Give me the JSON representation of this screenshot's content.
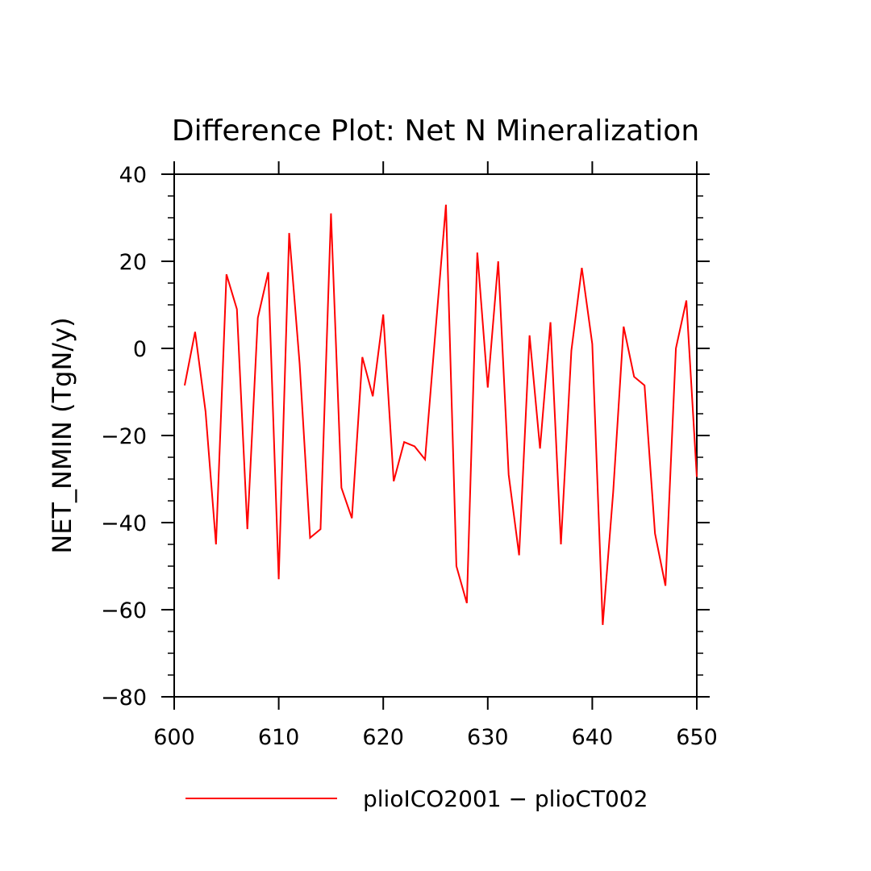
{
  "chart_data": {
    "type": "line",
    "title": "Difference Plot: Net N Mineralization",
    "ylabel": "NET_NMIN   (TgN/y)",
    "xlabel": "",
    "xlim": [
      600,
      650
    ],
    "ylim": [
      -80,
      40
    ],
    "x_ticks": [
      600,
      610,
      620,
      630,
      640,
      650
    ],
    "y_ticks": [
      -80,
      -60,
      -40,
      -20,
      0,
      20,
      40
    ],
    "x_tick_labels": [
      "600",
      "610",
      "620",
      "630",
      "640",
      "650"
    ],
    "y_tick_labels": [
      "−80",
      "−60",
      "−40",
      "−20",
      "0",
      "20",
      "40"
    ],
    "grid": false,
    "legend_position": "bottom",
    "series": [
      {
        "name": "plioICO2001 − plioCT002",
        "color": "#ff0000",
        "x": [
          601,
          602,
          603,
          604,
          605,
          606,
          607,
          608,
          609,
          610,
          611,
          612,
          613,
          614,
          615,
          616,
          617,
          618,
          619,
          620,
          621,
          622,
          623,
          624,
          625,
          626,
          627,
          628,
          629,
          630,
          631,
          632,
          633,
          634,
          635,
          636,
          637,
          638,
          639,
          640,
          641,
          642,
          643,
          644,
          645,
          646,
          647,
          648,
          649,
          650
        ],
        "values": [
          -8.5,
          3.8,
          -14.5,
          -45,
          17,
          9,
          -41.5,
          7,
          17.5,
          -53,
          26.5,
          -3.5,
          -43.5,
          -41.5,
          31,
          -32,
          -39,
          -2,
          -11,
          7.8,
          -30.5,
          -21.5,
          -22.5,
          -25.5,
          4,
          33,
          -50,
          -58.5,
          22,
          -9,
          20,
          -29,
          -47.5,
          3,
          -23,
          6,
          -45,
          -0.5,
          18.5,
          1,
          -63.5,
          -33,
          5,
          -6.5,
          -8.5,
          -42.5,
          -54.5,
          0,
          11,
          -29.5
        ]
      }
    ]
  }
}
